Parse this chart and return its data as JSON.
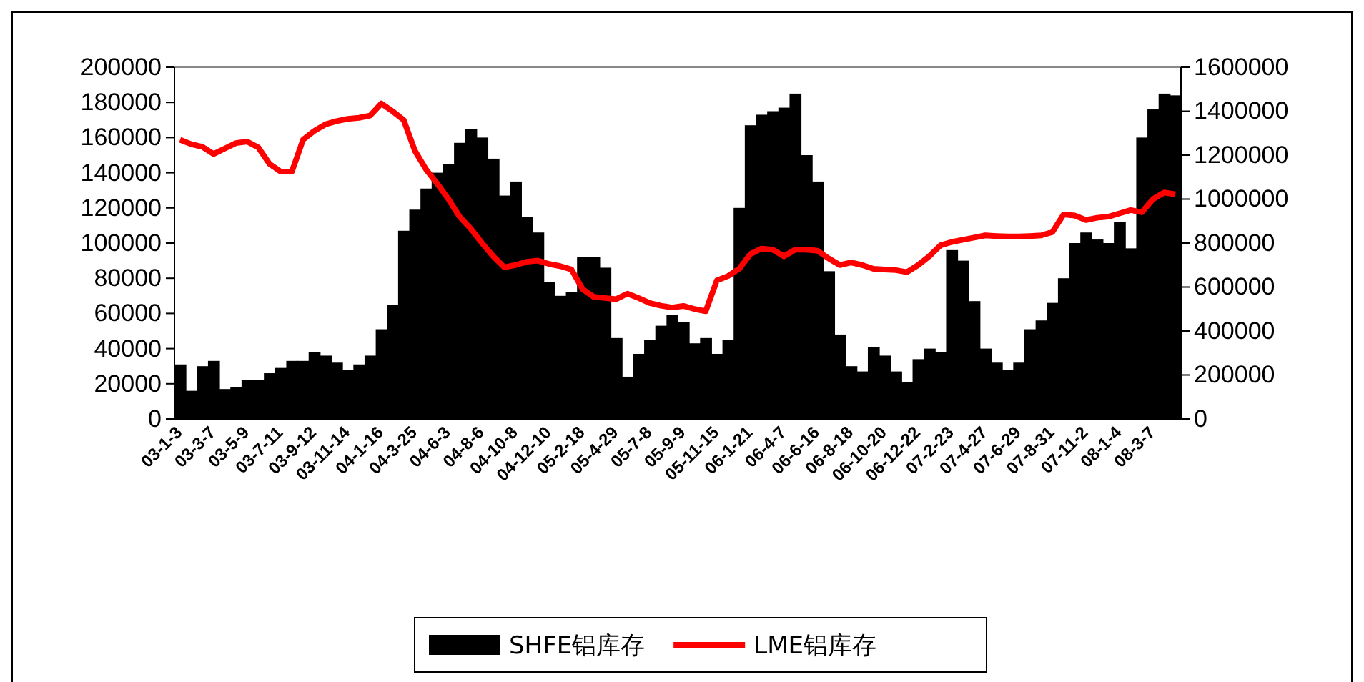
{
  "chart_data": {
    "type": "bar",
    "categories": [
      "03-1-3",
      null,
      null,
      "03-3-7",
      null,
      null,
      "03-5-9",
      null,
      null,
      "03-7-11",
      null,
      null,
      "03-9-12",
      null,
      null,
      "03-11-14",
      null,
      null,
      "04-1-16",
      null,
      null,
      "04-3-25",
      null,
      null,
      "04-6-3",
      null,
      null,
      "04-8-6",
      null,
      null,
      "04-10-8",
      null,
      null,
      "04-12-10",
      null,
      null,
      "05-2-18",
      null,
      null,
      "05-4-29",
      null,
      null,
      "05-7-8",
      null,
      null,
      "05-9-9",
      null,
      null,
      "05-11-15",
      null,
      null,
      "06-1-21",
      null,
      null,
      "06-4-7",
      null,
      null,
      "06-6-16",
      null,
      null,
      "06-8-18",
      null,
      null,
      "06-10-20",
      null,
      null,
      "06-12-22",
      null,
      null,
      "07-2-23",
      null,
      null,
      "07-4-27",
      null,
      null,
      "07-6-29",
      null,
      null,
      "07-8-31",
      null,
      null,
      "07-11-2",
      null,
      null,
      "08-1-4",
      null,
      null,
      "08-3-7",
      null,
      null
    ],
    "series": [
      {
        "name": "SHFE铝库存",
        "color": "#000000",
        "values": [
          31000,
          16000,
          30000,
          33000,
          17000,
          18000,
          22000,
          22000,
          26000,
          29000,
          33000,
          33000,
          38000,
          36000,
          32000,
          28000,
          31000,
          36000,
          51000,
          65000,
          107000,
          119000,
          131000,
          140000,
          145000,
          157000,
          165000,
          160000,
          148000,
          127000,
          135000,
          115000,
          106000,
          78000,
          70000,
          72000,
          92000,
          92000,
          86000,
          46000,
          24000,
          37000,
          45000,
          53000,
          59000,
          55000,
          43000,
          46000,
          37000,
          45000,
          120000,
          167000,
          173000,
          175000,
          177000,
          185000,
          150000,
          135000,
          84000,
          48000,
          30000,
          27000,
          41000,
          36000,
          27000,
          21000,
          34000,
          40000,
          38000,
          96000,
          90000,
          67000,
          40000,
          32000,
          28000,
          32000,
          51000,
          56000,
          66000,
          80000,
          100000,
          106000,
          102000,
          100000,
          112000,
          97000,
          160000,
          176000,
          185000,
          184000
        ]
      },
      {
        "name": "LME铝库存",
        "type": "line",
        "axis": "y2",
        "color": "#ff0000",
        "values": [
          1270000,
          1250000,
          1238000,
          1205000,
          1230000,
          1255000,
          1262000,
          1235000,
          1160000,
          1125000,
          1125000,
          1270000,
          1310000,
          1340000,
          1355000,
          1365000,
          1370000,
          1380000,
          1435000,
          1400000,
          1360000,
          1220000,
          1135000,
          1070000,
          1000000,
          920000,
          865000,
          800000,
          740000,
          690000,
          700000,
          715000,
          720000,
          705000,
          695000,
          680000,
          590000,
          555000,
          550000,
          545000,
          570000,
          550000,
          527000,
          515000,
          507000,
          514000,
          500000,
          490000,
          630000,
          650000,
          683000,
          750000,
          775000,
          770000,
          740000,
          770000,
          770000,
          765000,
          730000,
          700000,
          712000,
          700000,
          683000,
          680000,
          677000,
          668000,
          700000,
          740000,
          790000,
          805000,
          815000,
          825000,
          835000,
          832000,
          830000,
          830000,
          832000,
          835000,
          850000,
          930000,
          925000,
          905000,
          915000,
          920000,
          935000,
          950000,
          940000,
          1000000,
          1030000,
          1022000
        ]
      }
    ],
    "ylim": [
      0,
      200000
    ],
    "yticks": [
      0,
      20000,
      40000,
      60000,
      80000,
      100000,
      120000,
      140000,
      160000,
      180000,
      200000
    ],
    "y2lim": [
      0,
      1600000
    ],
    "y2ticks": [
      0,
      200000,
      400000,
      600000,
      800000,
      1000000,
      1200000,
      1400000,
      1600000
    ],
    "legend": "bottom"
  }
}
